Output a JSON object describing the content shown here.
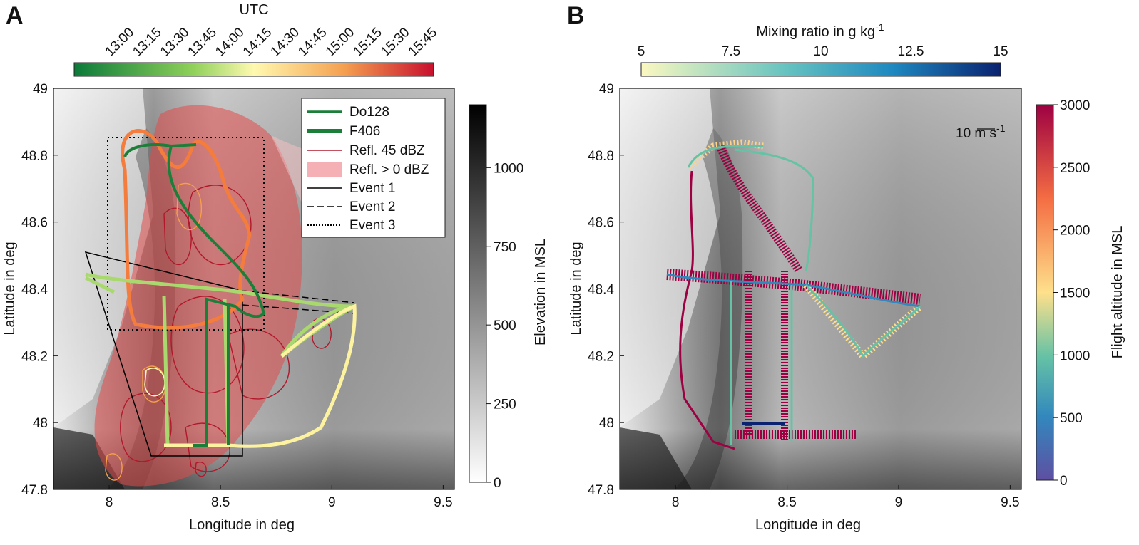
{
  "panel_a": {
    "letter": "A",
    "colorbar_title": "UTC",
    "time_ticks": [
      "13:00",
      "13:15",
      "13:30",
      "13:45",
      "14:00",
      "14:15",
      "14:30",
      "14:45",
      "15:00",
      "15:15",
      "15:30",
      "15:45"
    ],
    "elevation_label": "Elevation in MSL",
    "elevation_ticks": [
      "0",
      "250",
      "500",
      "750",
      "1000"
    ],
    "xlabel": "Longitude in deg",
    "ylabel": "Latitude in deg",
    "x_ticks": [
      "8",
      "8.5",
      "9",
      "9.5"
    ],
    "y_ticks": [
      "47.8",
      "48",
      "48.2",
      "48.4",
      "48.6",
      "48.8",
      "49"
    ],
    "legend": {
      "do128": "Do128",
      "f406": "F406",
      "refl45": "Refl. 45 dBZ",
      "refl0": "Refl. > 0 dBZ",
      "event1": "Event 1",
      "event2": "Event 2",
      "event3": "Event 3"
    }
  },
  "panel_b": {
    "letter": "B",
    "colorbar_title": "Mixing ratio in g kg",
    "colorbar_title_sup": "-1",
    "mixing_ticks": [
      "5",
      "7.5",
      "10",
      "12.5",
      "15"
    ],
    "altitude_label": "Flight altitude in MSL",
    "altitude_ticks": [
      "0",
      "500",
      "1000",
      "1500",
      "2000",
      "2500",
      "3000"
    ],
    "wind_scale_label": "10 m s",
    "wind_scale_sup": "-1",
    "xlabel": "Longitude in deg",
    "ylabel": "Latitude in deg",
    "x_ticks": [
      "8",
      "8.5",
      "9",
      "9.5"
    ],
    "y_ticks": [
      "47.8",
      "48",
      "48.2",
      "48.4",
      "48.6",
      "48.8",
      "49"
    ]
  },
  "colors": {
    "utc_scale": [
      "#0b7a3a",
      "#8fd05a",
      "#fff9b0",
      "#f5a050",
      "#c8102e"
    ],
    "mixing_scale": [
      "#fbf8c0",
      "#67c3c0",
      "#1e88c0",
      "#0a2270"
    ],
    "altitude_scale": [
      "#5e4fa2",
      "#3288bd",
      "#66c2a5",
      "#fee08b",
      "#f46d43",
      "#9e0142"
    ],
    "do128": "#1b7f3a",
    "refl45": "#b2182b",
    "refl0": "#f4b0b4"
  }
}
